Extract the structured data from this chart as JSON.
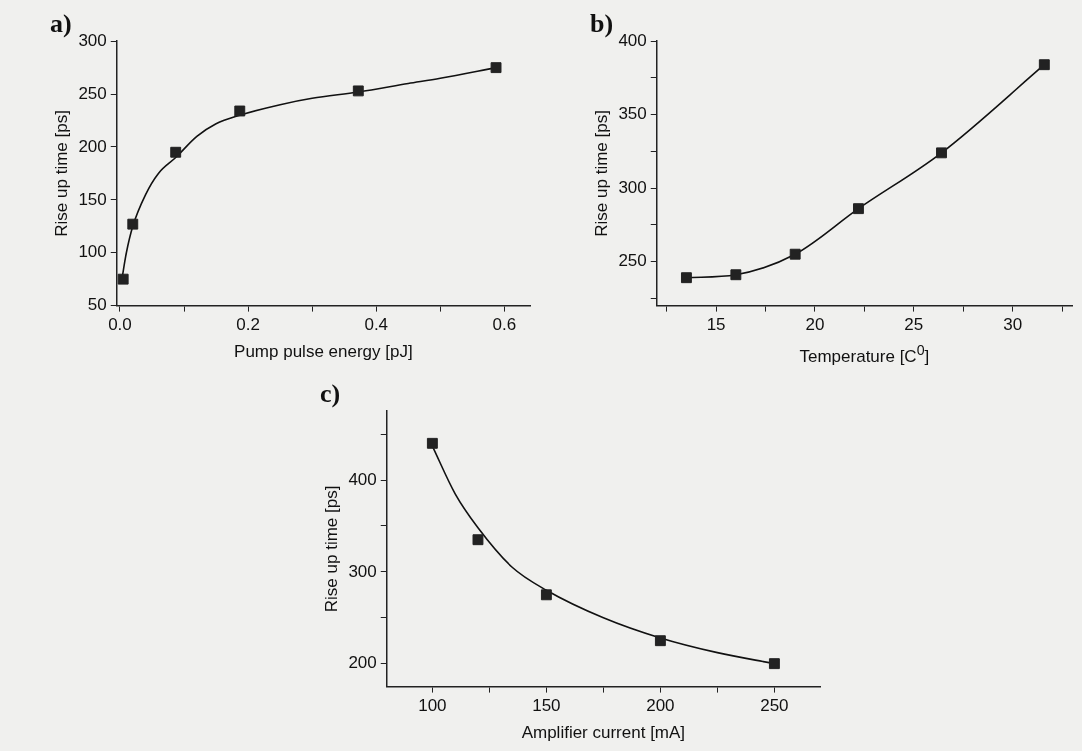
{
  "chart_data": [
    {
      "type": "scatter",
      "title": "a)",
      "xlabel": "Pump pulse energy [pJ]",
      "ylabel": "Rise up time [ps]",
      "xlim": [
        -0.005,
        0.64
      ],
      "xticks": [
        {
          "value": 0,
          "label": "0.0"
        },
        {
          "value": 0.1,
          "label": null
        },
        {
          "value": 0.2,
          "label": "0.2"
        },
        {
          "value": 0.3,
          "label": null
        },
        {
          "value": 0.4,
          "label": "0.4"
        },
        {
          "value": 0.5,
          "label": null
        },
        {
          "value": 0.6,
          "label": "0.6"
        }
      ],
      "ylim": [
        50,
        300
      ],
      "yticks": [
        50,
        100,
        150,
        200,
        250,
        300
      ],
      "grid": false,
      "legend": false,
      "line_style": "solid",
      "series": [
        {
          "type": "scatter",
          "marker": "square",
          "color": "#222222",
          "x": [
            0.005,
            0.02,
            0.087,
            0.187,
            0.372,
            0.587
          ],
          "values": [
            75,
            127,
            195,
            234,
            253,
            275
          ]
        },
        {
          "type": "line",
          "marker": "none",
          "color": "#111111",
          "x": [
            0.003,
            0.01,
            0.02,
            0.04,
            0.06,
            0.087,
            0.12,
            0.15,
            0.187,
            0.25,
            0.3,
            0.372,
            0.45,
            0.5,
            0.587
          ],
          "values": [
            75,
            100,
            125,
            155,
            175,
            190,
            210,
            222,
            230,
            240,
            246,
            252,
            260,
            265,
            275
          ]
        }
      ]
    },
    {
      "type": "scatter",
      "title": "b)",
      "xlabel": "Temperature [C$^{0}$]",
      "ylabel": "Rise up time [ps]",
      "xlim": [
        12,
        33
      ],
      "xticks": [
        {
          "value": 12.5,
          "label": null
        },
        15,
        {
          "value": 17.5,
          "label": null
        },
        20,
        {
          "value": 22.5,
          "label": null
        },
        25,
        {
          "value": 27.5,
          "label": null
        },
        30,
        {
          "value": 32.5,
          "label": null
        }
      ],
      "ylim": [
        220,
        400
      ],
      "yticks": [
        {
          "value": 225,
          "label": null
        },
        250,
        {
          "value": 275,
          "label": null
        },
        300,
        {
          "value": 325,
          "label": null
        },
        350,
        {
          "value": 375,
          "label": null
        },
        400
      ],
      "grid": false,
      "legend": false,
      "line_style": "solid",
      "series": [
        {
          "type": "scatter",
          "marker": "square",
          "color": "#222222",
          "x": [
            13.5,
            16.0,
            19.0,
            22.2,
            26.4,
            31.6
          ],
          "values": [
            239,
            241,
            255,
            286,
            324,
            384
          ]
        },
        {
          "type": "line",
          "marker": "none",
          "color": "#111111",
          "x": [
            13.5,
            16.0,
            19.0,
            22.2,
            26.4,
            31.6
          ],
          "values": [
            239,
            241,
            255,
            286,
            324,
            384
          ]
        }
      ]
    },
    {
      "type": "scatter",
      "title": "c)",
      "xlabel": "Amplifier current [mA]",
      "ylabel": "Rise up time [ps]",
      "xlim": [
        80,
        270
      ],
      "xticks": [
        100,
        {
          "value": 125,
          "label": null
        },
        150,
        {
          "value": 175,
          "label": null
        },
        200,
        {
          "value": 225,
          "label": null
        },
        250
      ],
      "ylim": [
        175,
        475
      ],
      "yticks": [
        200,
        {
          "value": 250,
          "label": null
        },
        300,
        {
          "value": 350,
          "label": null
        },
        400,
        {
          "value": 450,
          "label": null
        }
      ],
      "grid": false,
      "legend": false,
      "line_style": "solid",
      "series": [
        {
          "type": "scatter",
          "marker": "square",
          "color": "#222222",
          "x": [
            100,
            120,
            150,
            200,
            250
          ],
          "values": [
            440,
            335,
            275,
            225,
            200
          ]
        },
        {
          "type": "line",
          "marker": "none",
          "color": "#111111",
          "x": [
            100,
            110,
            120,
            135,
            150,
            175,
            200,
            225,
            250
          ],
          "values": [
            437,
            385,
            348,
            305,
            280,
            250,
            228,
            212,
            200
          ]
        }
      ]
    }
  ]
}
